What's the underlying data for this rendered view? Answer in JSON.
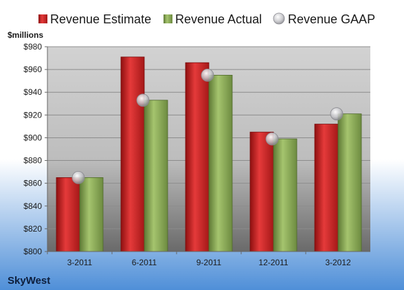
{
  "chart_data": {
    "type": "bar",
    "ylabel": "$millions",
    "ylim": [
      800,
      980
    ],
    "yticks": [
      "$800",
      "$820",
      "$840",
      "$860",
      "$880",
      "$900",
      "$920",
      "$940",
      "$960",
      "$980"
    ],
    "categories": [
      "3-2011",
      "6-2011",
      "9-2011",
      "12-2011",
      "3-2012"
    ],
    "series": [
      {
        "name": "Revenue Estimate",
        "kind": "bar",
        "color": "#d42a2a",
        "values": [
          865,
          971,
          966,
          905,
          912
        ]
      },
      {
        "name": "Revenue Actual",
        "kind": "bar",
        "color": "#8fb05a",
        "values": [
          865,
          933,
          955,
          899,
          921
        ]
      },
      {
        "name": "Revenue GAAP",
        "kind": "marker",
        "color": "#c8c8cc",
        "values": [
          865,
          933,
          955,
          899,
          921
        ]
      }
    ],
    "legend_position": "top",
    "grid": true
  },
  "footer": {
    "company": "SkyWest"
  },
  "colors": {
    "background_top": "#ffffff",
    "background_bottom": "#4f8fd8",
    "plot_top": "#d2d2d2",
    "plot_bottom": "#6a6a6a"
  }
}
